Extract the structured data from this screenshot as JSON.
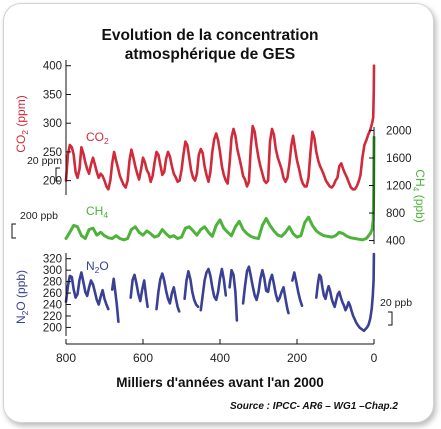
{
  "title_lines": [
    "Evolution de la concentration",
    "atmosphérique de GES"
  ],
  "source": "Source : IPCC- AR6 – WG1 –Chap.2",
  "colors": {
    "co2": "#d12a3a",
    "ch4": "#4db33a",
    "n2o": "#3a4194",
    "axis": "#111111"
  },
  "chart_data": {
    "type": "line",
    "title": "Evolution de la concentration atmosphérique de GES",
    "xlabel": "Milliers d'années avant l'an 2000",
    "x_ticks": [
      800,
      600,
      400,
      200,
      0
    ],
    "x_range": [
      800,
      0
    ],
    "series": [
      {
        "key": "co2",
        "name": "CO2",
        "subscript": "2",
        "unit": "ppm",
        "axis": "left",
        "axis_label": "CO2 (ppm)",
        "scale_bar": "20 ppm",
        "ticks": [
          200,
          250,
          300,
          350,
          400
        ],
        "range": [
          175,
          410
        ],
        "x": [
          800,
          795,
          790,
          785,
          780,
          775,
          770,
          765,
          760,
          755,
          750,
          745,
          740,
          735,
          730,
          725,
          720,
          715,
          710,
          705,
          700,
          695,
          690,
          685,
          680,
          675,
          670,
          665,
          660,
          655,
          650,
          645,
          640,
          635,
          630,
          625,
          620,
          615,
          610,
          605,
          600,
          595,
          590,
          585,
          580,
          575,
          570,
          565,
          560,
          555,
          550,
          545,
          540,
          535,
          530,
          525,
          520,
          515,
          510,
          505,
          500,
          495,
          490,
          485,
          480,
          475,
          470,
          465,
          460,
          455,
          450,
          445,
          440,
          435,
          430,
          425,
          420,
          415,
          410,
          405,
          400,
          395,
          390,
          385,
          380,
          375,
          370,
          365,
          360,
          355,
          350,
          345,
          340,
          335,
          330,
          325,
          320,
          315,
          310,
          305,
          300,
          295,
          290,
          285,
          280,
          275,
          270,
          265,
          260,
          255,
          250,
          245,
          240,
          235,
          230,
          225,
          220,
          215,
          210,
          205,
          200,
          195,
          190,
          185,
          180,
          175,
          170,
          165,
          160,
          155,
          150,
          145,
          140,
          135,
          130,
          125,
          120,
          115,
          110,
          105,
          100,
          95,
          90,
          85,
          80,
          75,
          70,
          65,
          60,
          55,
          50,
          45,
          40,
          35,
          30,
          25,
          20,
          15,
          10,
          5,
          2,
          1,
          0.5,
          0.1
        ],
        "y": [
          200,
          245,
          262,
          258,
          245,
          215,
          205,
          220,
          258,
          248,
          232,
          220,
          212,
          228,
          240,
          228,
          215,
          205,
          212,
          208,
          200,
          190,
          185,
          200,
          230,
          250,
          235,
          222,
          208,
          200,
          192,
          188,
          200,
          235,
          254,
          240,
          225,
          212,
          202,
          220,
          240,
          232,
          218,
          212,
          198,
          208,
          232,
          250,
          245,
          228,
          210,
          215,
          238,
          250,
          242,
          225,
          212,
          206,
          198,
          200,
          218,
          245,
          268,
          262,
          240,
          218,
          205,
          200,
          212,
          245,
          255,
          248,
          225,
          210,
          198,
          215,
          250,
          272,
          282,
          270,
          250,
          225,
          210,
          200,
          195,
          230,
          275,
          290,
          278,
          255,
          240,
          225,
          208,
          202,
          190,
          198,
          258,
          295,
          285,
          260,
          240,
          225,
          212,
          200,
          196,
          200,
          268,
          290,
          280,
          255,
          240,
          230,
          220,
          205,
          198,
          205,
          228,
          260,
          278,
          255,
          235,
          222,
          205,
          195,
          190,
          190,
          205,
          250,
          285,
          275,
          250,
          235,
          225,
          218,
          210,
          200,
          195,
          190,
          188,
          192,
          200,
          205,
          225,
          230,
          220,
          212,
          205,
          196,
          188,
          185,
          185,
          190,
          198,
          210,
          240,
          262,
          270,
          280,
          288,
          300,
          310,
          340,
          360,
          400
        ]
      },
      {
        "key": "ch4",
        "name": "CH4",
        "subscript": "4",
        "unit": "ppb",
        "axis": "right",
        "axis_label": "CH4 (ppb)",
        "scale_bar": "200 ppb",
        "ticks": [
          400,
          800,
          1200,
          1600,
          2000
        ],
        "range": [
          350,
          2050
        ],
        "x": [
          800,
          790,
          780,
          770,
          760,
          750,
          740,
          730,
          720,
          710,
          700,
          690,
          680,
          670,
          660,
          650,
          640,
          630,
          620,
          610,
          600,
          590,
          580,
          570,
          560,
          550,
          540,
          530,
          520,
          510,
          500,
          490,
          480,
          470,
          460,
          450,
          440,
          430,
          420,
          410,
          400,
          390,
          380,
          370,
          360,
          350,
          340,
          330,
          320,
          310,
          300,
          290,
          280,
          270,
          260,
          250,
          240,
          230,
          220,
          210,
          200,
          190,
          180,
          170,
          160,
          150,
          140,
          130,
          120,
          110,
          100,
          90,
          80,
          70,
          60,
          50,
          40,
          30,
          20,
          10,
          5,
          2,
          1,
          0.5,
          0.1
        ],
        "y": [
          430,
          520,
          620,
          600,
          470,
          430,
          560,
          580,
          480,
          520,
          470,
          440,
          430,
          470,
          430,
          410,
          430,
          560,
          600,
          520,
          480,
          540,
          500,
          450,
          470,
          560,
          500,
          450,
          470,
          430,
          450,
          580,
          600,
          540,
          480,
          560,
          600,
          520,
          460,
          620,
          700,
          580,
          520,
          470,
          600,
          680,
          560,
          500,
          460,
          440,
          430,
          620,
          720,
          620,
          540,
          480,
          460,
          520,
          600,
          500,
          450,
          470,
          660,
          740,
          620,
          540,
          500,
          470,
          460,
          450,
          470,
          520,
          500,
          460,
          440,
          430,
          420,
          410,
          430,
          500,
          560,
          700,
          1000,
          1500,
          1900
        ]
      },
      {
        "key": "n2o",
        "name": "N2O",
        "subscript": "2",
        "unit": "ppb",
        "axis": "left",
        "axis_label": "N2O (ppb)",
        "scale_bar": "20 ppb",
        "ticks": [
          200,
          220,
          240,
          260,
          280,
          300,
          320
        ],
        "range": [
          185,
          330
        ],
        "segments": [
          {
            "x": [
              800,
              795,
              790,
              785,
              780,
              775,
              770,
              765,
              760,
              755,
              750,
              745,
              740,
              735,
              730,
              725,
              720,
              715,
              710,
              705,
              700,
              695,
              690
            ],
            "y": [
              245,
              272,
              290,
              288,
              266,
              252,
              258,
              283,
              296,
              280,
              262,
              255,
              270,
              282,
              275,
              262,
              248,
              240,
              254,
              265,
              250,
              240,
              232
            ]
          },
          {
            "x": [
              680,
              676,
              672,
              668,
              664
            ],
            "y": [
              266,
              285,
              262,
              240,
              210
            ]
          },
          {
            "x": [
              632,
              627,
              622,
              617,
              612,
              607,
              602,
              597,
              592,
              588
            ],
            "y": [
              252,
              283,
              292,
              276,
              258,
              246,
              266,
              282,
              254,
              236
            ]
          },
          {
            "x": [
              565,
              560,
              555,
              550,
              545,
              540,
              535,
              530,
              525,
              520,
              515,
              510,
              506
            ],
            "y": [
              232,
              262,
              284,
              294,
              282,
              264,
              250,
              242,
              260,
              270,
              252,
              236,
              228
            ]
          },
          {
            "x": [
              492,
              487,
              482,
              477,
              472,
              467,
              462,
              457
            ],
            "y": [
              250,
              282,
              298,
              284,
              262,
              248,
              240,
              236
            ]
          },
          {
            "x": [
              450,
              445,
              440,
              435,
              430,
              425,
              420,
              415,
              410,
              405,
              400,
              395,
              390,
              385
            ],
            "y": [
              230,
              256,
              282,
              296,
              302,
              290,
              270,
              254,
              248,
              262,
              286,
              302,
              284,
              256
            ]
          },
          {
            "x": [
              375,
              370,
              365,
              360,
              356
            ],
            "y": [
              270,
              300,
              292,
              262,
              212
            ]
          },
          {
            "x": [
              340,
              335,
              330,
              325,
              320,
              315,
              310,
              305,
              300,
              295,
              290,
              285,
              280,
              275,
              270,
              265,
              260,
              255,
              250,
              245,
              240,
              235,
              230,
              225,
              222
            ],
            "y": [
              242,
              272,
              298,
              306,
              290,
              272,
              256,
              248,
              262,
              285,
              300,
              286,
              264,
              262,
              282,
              292,
              276,
              258,
              246,
              252,
              262,
              270,
              250,
              232,
              225
            ]
          },
          {
            "x": [
              212,
              207,
              202,
              197,
              192,
              187
            ],
            "y": [
              282,
              296,
              280,
              262,
              248,
              238
            ]
          },
          {
            "x": [
              150,
              146,
              142,
              138,
              134,
              130,
              126,
              122,
              118,
              114,
              110,
              106,
              102,
              98,
              94,
              90,
              86,
              82,
              78,
              74,
              70,
              66,
              62,
              58,
              54,
              50,
              46,
              42,
              38,
              34,
              30,
              26,
              22,
              18,
              14,
              10,
              6,
              3,
              1,
              0.3
            ],
            "y": [
              252,
              275,
              292,
              288,
              270,
              256,
              250,
              262,
              272,
              264,
              250,
              242,
              236,
              248,
              258,
              262,
              252,
              244,
              238,
              230,
              236,
              244,
              238,
              228,
              220,
              214,
              208,
              204,
              200,
              198,
              196,
              194,
              197,
              200,
              205,
              215,
              232,
              256,
              282,
              328
            ]
          }
        ]
      }
    ]
  }
}
